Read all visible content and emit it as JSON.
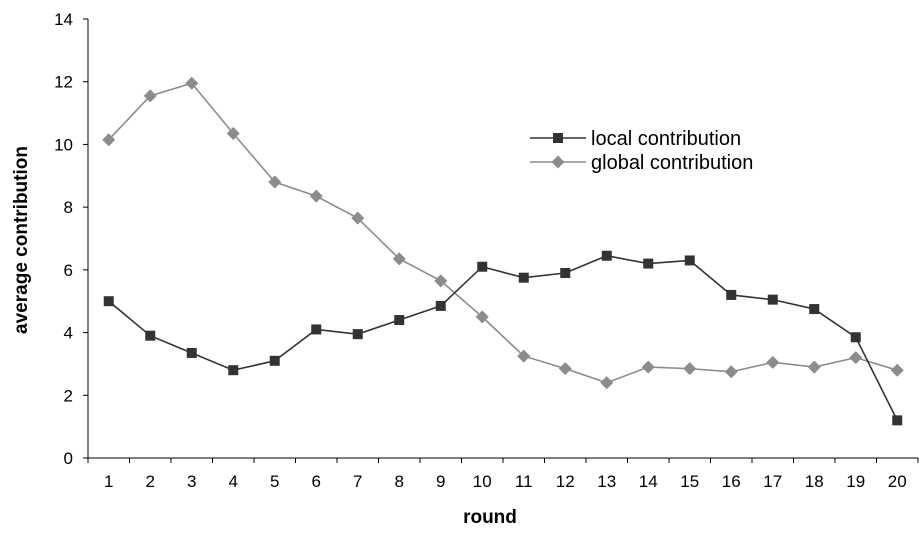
{
  "chart_data": {
    "type": "line",
    "title": "",
    "xlabel": "round",
    "ylabel": "average contribution",
    "x": [
      1,
      2,
      3,
      4,
      5,
      6,
      7,
      8,
      9,
      10,
      11,
      12,
      13,
      14,
      15,
      16,
      17,
      18,
      19,
      20
    ],
    "ylim": [
      0,
      14
    ],
    "yticks": [
      0,
      2,
      4,
      6,
      8,
      10,
      12,
      14
    ],
    "grid": false,
    "legend_position": "upper-right",
    "series": [
      {
        "name": "local contribution",
        "marker": "square",
        "color": "#333333",
        "values": [
          5.0,
          3.9,
          3.35,
          2.8,
          3.1,
          4.1,
          3.95,
          4.4,
          4.85,
          6.1,
          5.75,
          5.9,
          6.45,
          6.2,
          6.3,
          5.2,
          5.05,
          4.75,
          3.85,
          1.2
        ]
      },
      {
        "name": "global contribution",
        "marker": "diamond",
        "color": "#8c8c8c",
        "values": [
          10.15,
          11.55,
          11.95,
          10.35,
          8.8,
          8.35,
          7.65,
          6.35,
          5.65,
          4.5,
          3.25,
          2.85,
          2.4,
          2.9,
          2.85,
          2.75,
          3.05,
          2.9,
          3.2,
          2.8
        ]
      }
    ]
  }
}
